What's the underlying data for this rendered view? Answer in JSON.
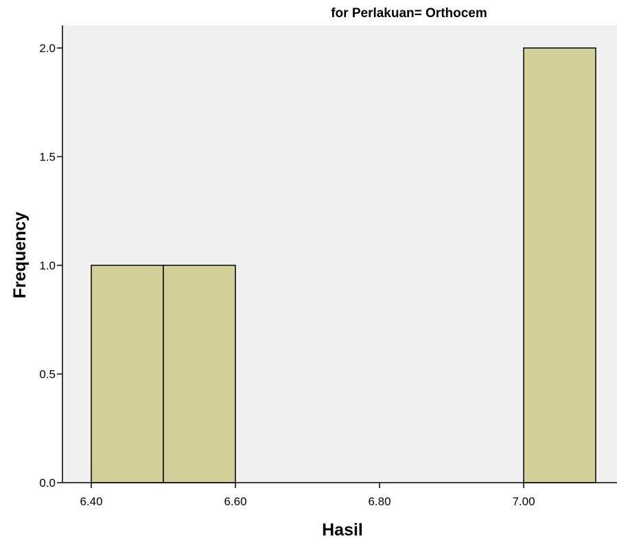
{
  "chart_data": {
    "type": "bar",
    "title": "for Perlakuan= Orthocem",
    "xlabel": "Hasil",
    "ylabel": "Frequency",
    "bins": [
      {
        "start": 6.4,
        "end": 6.5,
        "value": 1.0
      },
      {
        "start": 6.5,
        "end": 6.6,
        "value": 1.0
      },
      {
        "start": 7.0,
        "end": 7.1,
        "value": 2.0
      }
    ],
    "xlim": [
      6.3,
      7.15
    ],
    "ylim": [
      0.0,
      2.1
    ],
    "x_ticks": [
      {
        "value": 6.4,
        "label": "6.40"
      },
      {
        "value": 6.6,
        "label": "6.60"
      },
      {
        "value": 6.8,
        "label": "6.80"
      },
      {
        "value": 7.0,
        "label": "7.00"
      }
    ],
    "y_ticks": [
      {
        "value": 0.0,
        "label": "0.0"
      },
      {
        "value": 0.5,
        "label": "0.5"
      },
      {
        "value": 1.0,
        "label": "1.0"
      },
      {
        "value": 1.5,
        "label": "1.5"
      },
      {
        "value": 2.0,
        "label": "2.0"
      }
    ],
    "bar_color": "#d3cf98",
    "plot_background": "#f0f0f0",
    "grid": false,
    "legend": "none"
  }
}
